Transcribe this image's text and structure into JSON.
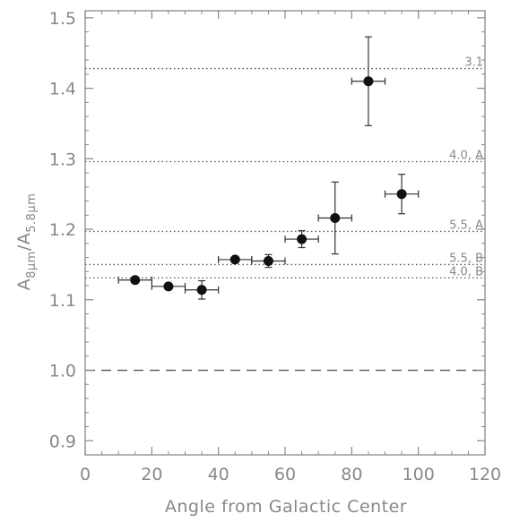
{
  "chart_data": {
    "type": "scatter",
    "title": "",
    "xlabel": "Angle from Galactic Center",
    "ylabel": "A_8μm / A_5.8μm",
    "ylabel_parts": {
      "a": "A",
      "sub1": "8μm",
      "sep": "/A",
      "sub2": "5.8μm"
    },
    "xlim": [
      0,
      120
    ],
    "ylim": [
      0.88,
      1.51
    ],
    "xticks": [
      0,
      20,
      40,
      60,
      80,
      100,
      120
    ],
    "xtick_labels": [
      "0",
      "20",
      "40",
      "60",
      "80",
      "100",
      "120"
    ],
    "yticks": [
      0.9,
      1.0,
      1.1,
      1.2,
      1.3,
      1.4,
      1.5
    ],
    "ytick_labels": [
      "0.9",
      "1.0",
      "1.1",
      "1.2",
      "1.3",
      "1.4",
      "1.5"
    ],
    "grid": false,
    "points": [
      {
        "x": 15,
        "y": 1.128,
        "xerr": 5,
        "yerr": 0.0
      },
      {
        "x": 25,
        "y": 1.119,
        "xerr": 5,
        "yerr": 0.0
      },
      {
        "x": 35,
        "y": 1.114,
        "xerr": 5,
        "yerr": 0.013
      },
      {
        "x": 45,
        "y": 1.157,
        "xerr": 5,
        "yerr": 0.0
      },
      {
        "x": 55,
        "y": 1.155,
        "xerr": 5,
        "yerr": 0.009
      },
      {
        "x": 65,
        "y": 1.186,
        "xerr": 5,
        "yerr": 0.012
      },
      {
        "x": 75,
        "y": 1.216,
        "xerr": 5,
        "yerr": 0.051
      },
      {
        "x": 85,
        "y": 1.41,
        "xerr": 5,
        "yerr": 0.063
      },
      {
        "x": 95,
        "y": 1.25,
        "xerr": 5,
        "yerr": 0.028
      }
    ],
    "reference_lines": [
      {
        "y": 1.428,
        "label": "3.1",
        "style": "dotted"
      },
      {
        "y": 1.296,
        "label": "4.0, A",
        "style": "dotted"
      },
      {
        "y": 1.197,
        "label": "5.5, A",
        "style": "dotted"
      },
      {
        "y": 1.15,
        "label": "5.5, B",
        "style": "dotted"
      },
      {
        "y": 1.131,
        "label": "4.0, B",
        "style": "dotted"
      },
      {
        "y": 1.0,
        "label": "",
        "style": "dashed"
      }
    ],
    "colors": {
      "axis": "#888888",
      "points": "#111111",
      "ref_line": "#555555",
      "errorbar": "#333333"
    }
  }
}
